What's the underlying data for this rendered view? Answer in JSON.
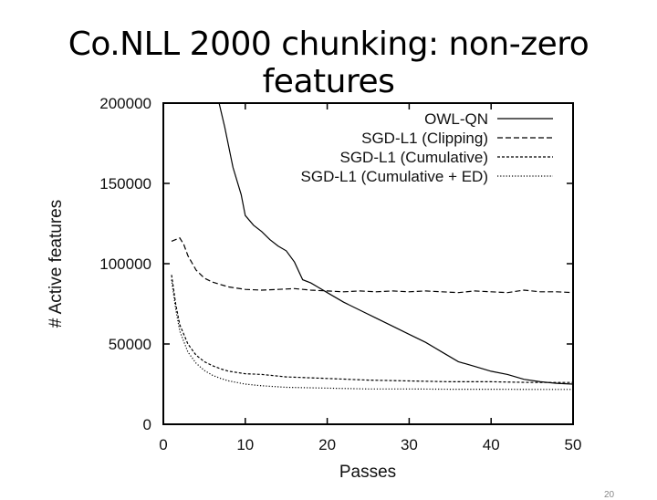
{
  "slide": {
    "title": "Co.NLL 2000 chunking: non-zero features",
    "page_number": "20"
  },
  "chart_data": {
    "type": "line",
    "title": "",
    "xlabel": "Passes",
    "ylabel": "# Active features",
    "xlim": [
      0,
      50
    ],
    "ylim": [
      0,
      200000
    ],
    "xticks": [
      0,
      10,
      20,
      30,
      40,
      50
    ],
    "yticks": [
      0,
      50000,
      100000,
      150000,
      200000
    ],
    "legend_position": "top-right",
    "grid": false,
    "series": [
      {
        "name": "OWL-QN",
        "style": "solid",
        "points": [
          [
            6.8,
            200000
          ],
          [
            7.5,
            185000
          ],
          [
            8.5,
            160000
          ],
          [
            9.5,
            143000
          ],
          [
            10,
            130000
          ],
          [
            11,
            124000
          ],
          [
            12,
            120000
          ],
          [
            13,
            115000
          ],
          [
            14,
            111000
          ],
          [
            15,
            108000
          ],
          [
            16,
            101000
          ],
          [
            17,
            90000
          ],
          [
            18,
            88000
          ],
          [
            19,
            85000
          ],
          [
            20,
            82000
          ],
          [
            22,
            76000
          ],
          [
            24,
            71000
          ],
          [
            26,
            66000
          ],
          [
            28,
            61000
          ],
          [
            30,
            56000
          ],
          [
            32,
            51000
          ],
          [
            34,
            45000
          ],
          [
            36,
            39000
          ],
          [
            38,
            36000
          ],
          [
            40,
            33000
          ],
          [
            42,
            31000
          ],
          [
            44,
            28000
          ],
          [
            46,
            26500
          ],
          [
            48,
            25500
          ],
          [
            50,
            25000
          ]
        ]
      },
      {
        "name": "SGD-L1 (Clipping)",
        "style": "dashed",
        "points": [
          [
            1,
            114000
          ],
          [
            1.5,
            115000
          ],
          [
            2,
            116000
          ],
          [
            2.5,
            112000
          ],
          [
            3,
            105000
          ],
          [
            4,
            96000
          ],
          [
            5,
            91000
          ],
          [
            6,
            88500
          ],
          [
            7,
            87000
          ],
          [
            8,
            85500
          ],
          [
            10,
            84000
          ],
          [
            12,
            83500
          ],
          [
            14,
            84000
          ],
          [
            16,
            84500
          ],
          [
            18,
            83500
          ],
          [
            20,
            83000
          ],
          [
            22,
            82500
          ],
          [
            24,
            83000
          ],
          [
            26,
            82500
          ],
          [
            28,
            83000
          ],
          [
            30,
            82500
          ],
          [
            32,
            83000
          ],
          [
            34,
            82500
          ],
          [
            36,
            82000
          ],
          [
            38,
            83000
          ],
          [
            40,
            82500
          ],
          [
            42,
            82000
          ],
          [
            44,
            83500
          ],
          [
            46,
            82500
          ],
          [
            48,
            82500
          ],
          [
            50,
            82000
          ]
        ]
      },
      {
        "name": "SGD-L1 (Cumulative)",
        "style": "dashed-fine",
        "points": [
          [
            1,
            93000
          ],
          [
            1.5,
            75000
          ],
          [
            2,
            62000
          ],
          [
            3,
            50000
          ],
          [
            4,
            43000
          ],
          [
            5,
            39000
          ],
          [
            6,
            36500
          ],
          [
            7,
            34500
          ],
          [
            8,
            33000
          ],
          [
            10,
            31500
          ],
          [
            12,
            31000
          ],
          [
            15,
            29500
          ],
          [
            20,
            28500
          ],
          [
            25,
            27500
          ],
          [
            30,
            27000
          ],
          [
            35,
            26500
          ],
          [
            40,
            26500
          ],
          [
            45,
            26000
          ],
          [
            50,
            26000
          ]
        ]
      },
      {
        "name": "SGD-L1 (Cumulative + ED)",
        "style": "dotted",
        "points": [
          [
            1,
            90000
          ],
          [
            1.5,
            72000
          ],
          [
            2,
            58000
          ],
          [
            3,
            45000
          ],
          [
            4,
            38000
          ],
          [
            5,
            33500
          ],
          [
            6,
            30500
          ],
          [
            7,
            28500
          ],
          [
            8,
            27000
          ],
          [
            10,
            25000
          ],
          [
            12,
            24000
          ],
          [
            15,
            23000
          ],
          [
            20,
            22500
          ],
          [
            25,
            22000
          ],
          [
            30,
            22000
          ],
          [
            35,
            21800
          ],
          [
            40,
            21800
          ],
          [
            45,
            21700
          ],
          [
            50,
            21700
          ]
        ]
      }
    ]
  }
}
